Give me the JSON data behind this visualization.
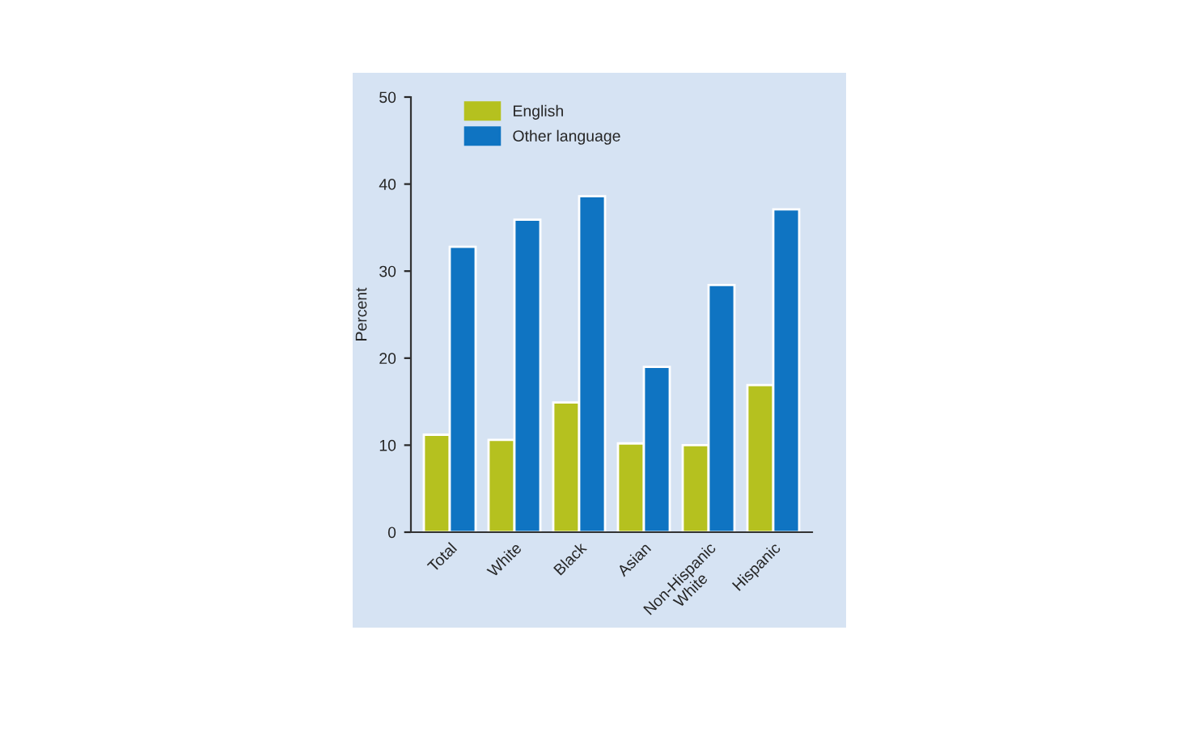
{
  "chart_data": {
    "type": "bar",
    "ylabel": "Percent",
    "categories": [
      "Total",
      "White",
      "Black",
      "Asian",
      "Non-Hispanic\nWhite",
      "Hispanic"
    ],
    "series": [
      {
        "name": "English",
        "color": "#b5c11f",
        "values": [
          11.2,
          10.6,
          14.9,
          10.2,
          10.0,
          16.9
        ]
      },
      {
        "name": "Other language",
        "color": "#0f74c2",
        "values": [
          32.8,
          35.9,
          38.6,
          19.0,
          28.4,
          37.1
        ]
      }
    ],
    "ylim": [
      0,
      50
    ],
    "yticks": [
      0,
      10,
      20,
      30,
      40,
      50
    ],
    "grid": false,
    "legend": "top left"
  }
}
